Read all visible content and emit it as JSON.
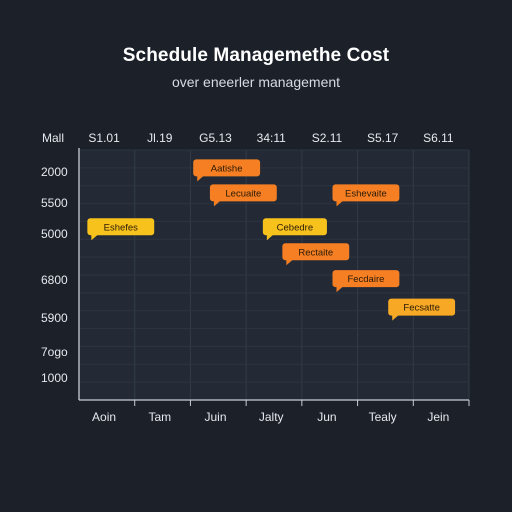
{
  "header": {
    "title": "Schedule Managemethe Cost",
    "subtitle": "over eneerler management"
  },
  "chart_data": {
    "type": "bar",
    "title": "Schedule Managemethe Cost",
    "subtitle": "over eneerler management",
    "corner_label": "Mall",
    "top_axis_labels": [
      "S1.01",
      "Jl.19",
      "G5.13",
      "34:11",
      "S2.11",
      "S5.17",
      "S6.11"
    ],
    "bottom_axis_labels": [
      "Aoin",
      "Tam",
      "Juin",
      "Jalty",
      "Jun",
      "Tealy",
      "Jein"
    ],
    "y_axis_labels": [
      "2000",
      "5500",
      "5000",
      "6800",
      "5900",
      "7ogo",
      "1000"
    ],
    "grid": true,
    "legend": "none",
    "colors": {
      "orange": "#f57f22",
      "amber": "#f7a825",
      "yellow": "#f8c21c",
      "background": "#1b2029",
      "plot": "#232a35"
    },
    "tasks": [
      {
        "label": "Aatishe",
        "row": 0.5,
        "start": 2.05,
        "end": 3.25,
        "color": "#f57f22"
      },
      {
        "label": "Lecuaite",
        "row": 1.2,
        "start": 2.35,
        "end": 3.55,
        "color": "#f57f22"
      },
      {
        "label": "Eshevaite",
        "row": 1.2,
        "start": 4.55,
        "end": 5.75,
        "color": "#f57f22"
      },
      {
        "label": "Eshefes",
        "row": 2.15,
        "start": 0.15,
        "end": 1.35,
        "color": "#f8c21c"
      },
      {
        "label": "Cebedre",
        "row": 2.15,
        "start": 3.3,
        "end": 4.45,
        "color": "#f8c21c"
      },
      {
        "label": "Rectaite",
        "row": 2.85,
        "start": 3.65,
        "end": 4.85,
        "color": "#f57f22"
      },
      {
        "label": "Fecdaire",
        "row": 3.6,
        "start": 4.55,
        "end": 5.75,
        "color": "#f57f22"
      },
      {
        "label": "Fecsatte",
        "row": 4.4,
        "start": 5.55,
        "end": 6.75,
        "color": "#f7a825"
      }
    ]
  }
}
